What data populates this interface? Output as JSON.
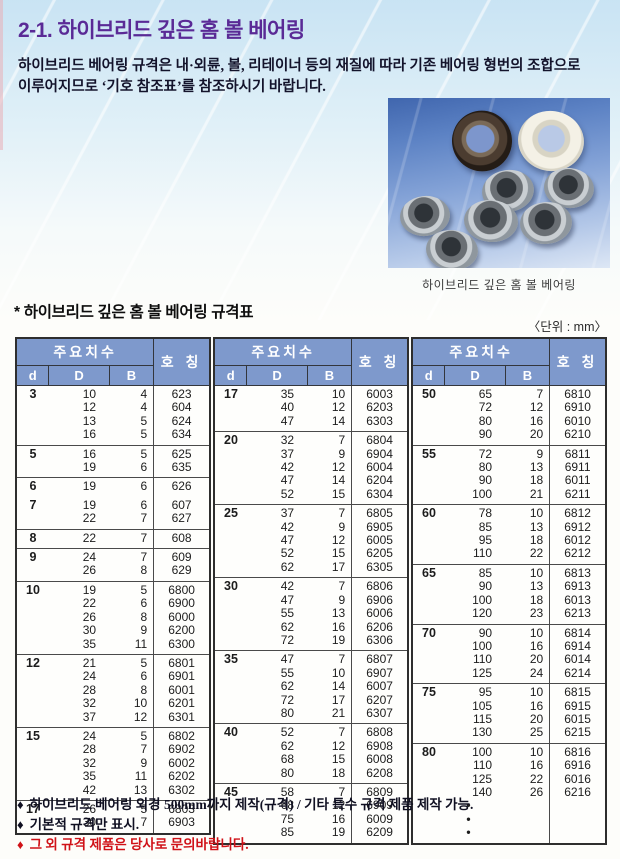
{
  "page": {
    "title": "2-1. 하이브리드 깊은 홈 볼 베어링",
    "intro_line1": "하이브리드 베어링 규격은 내·외륜, 볼, 리테이너 등의 재질에 따라 기존 베어링 형번의 조합으로",
    "intro_line2": "이루어지므로 ‘기호 참조표’를 참조하시기 바랍니다."
  },
  "photo": {
    "caption": "하이브리드 깊은 홈 볼 베어링"
  },
  "spec_table": {
    "title": "* 하이브리드 깊은 홈 볼 베어링 규격표",
    "unit_note": "〈단위 : mm〉",
    "header": {
      "group": "주요치수",
      "d": "d",
      "D": "D",
      "B": "B",
      "name": "호 칭"
    },
    "groups": [
      {
        "blocks": [
          {
            "d": "3",
            "rows": [
              {
                "D": "10",
                "B": "4",
                "no": "623"
              },
              {
                "D": "12",
                "B": "4",
                "no": "604"
              },
              {
                "D": "13",
                "B": "5",
                "no": "624"
              },
              {
                "D": "16",
                "B": "5",
                "no": "634"
              }
            ]
          },
          {
            "d": "5",
            "rows": [
              {
                "D": "16",
                "B": "5",
                "no": "625"
              },
              {
                "D": "19",
                "B": "6",
                "no": "635"
              }
            ]
          },
          {
            "d": "6",
            "rows": [
              {
                "D": "19",
                "B": "6",
                "no": "626"
              }
            ]
          },
          {
            "d": "7",
            "noTop": true,
            "rows": [
              {
                "D": "19",
                "B": "6",
                "no": "607"
              },
              {
                "D": "22",
                "B": "7",
                "no": "627"
              }
            ]
          },
          {
            "d": "8",
            "rows": [
              {
                "D": "22",
                "B": "7",
                "no": "608"
              }
            ]
          },
          {
            "d": "9",
            "rows": [
              {
                "D": "24",
                "B": "7",
                "no": "609"
              },
              {
                "D": "26",
                "B": "8",
                "no": "629"
              }
            ]
          },
          {
            "d": "10",
            "rows": [
              {
                "D": "19",
                "B": "5",
                "no": "6800"
              },
              {
                "D": "22",
                "B": "6",
                "no": "6900"
              },
              {
                "D": "26",
                "B": "8",
                "no": "6000"
              },
              {
                "D": "30",
                "B": "9",
                "no": "6200"
              },
              {
                "D": "35",
                "B": "11",
                "no": "6300"
              }
            ]
          },
          {
            "d": "12",
            "rows": [
              {
                "D": "21",
                "B": "5",
                "no": "6801"
              },
              {
                "D": "24",
                "B": "6",
                "no": "6901"
              },
              {
                "D": "28",
                "B": "8",
                "no": "6001"
              },
              {
                "D": "32",
                "B": "10",
                "no": "6201"
              },
              {
                "D": "37",
                "B": "12",
                "no": "6301"
              }
            ]
          },
          {
            "d": "15",
            "rows": [
              {
                "D": "24",
                "B": "5",
                "no": "6802"
              },
              {
                "D": "28",
                "B": "7",
                "no": "6902"
              },
              {
                "D": "32",
                "B": "9",
                "no": "6002"
              },
              {
                "D": "35",
                "B": "11",
                "no": "6202"
              },
              {
                "D": "42",
                "B": "13",
                "no": "6302"
              }
            ]
          },
          {
            "d": "17",
            "rows": [
              {
                "D": "26",
                "B": "5",
                "no": "6803"
              },
              {
                "D": "30",
                "B": "7",
                "no": "6903"
              }
            ]
          }
        ]
      },
      {
        "blocks": [
          {
            "d": "17",
            "rows": [
              {
                "D": "35",
                "B": "10",
                "no": "6003"
              },
              {
                "D": "40",
                "B": "12",
                "no": "6203"
              },
              {
                "D": "47",
                "B": "14",
                "no": "6303"
              }
            ]
          },
          {
            "d": "20",
            "rows": [
              {
                "D": "32",
                "B": "7",
                "no": "6804"
              },
              {
                "D": "37",
                "B": "9",
                "no": "6904"
              },
              {
                "D": "42",
                "B": "12",
                "no": "6004"
              },
              {
                "D": "47",
                "B": "14",
                "no": "6204"
              },
              {
                "D": "52",
                "B": "15",
                "no": "6304"
              }
            ]
          },
          {
            "d": "25",
            "rows": [
              {
                "D": "37",
                "B": "7",
                "no": "6805"
              },
              {
                "D": "42",
                "B": "9",
                "no": "6905"
              },
              {
                "D": "47",
                "B": "12",
                "no": "6005"
              },
              {
                "D": "52",
                "B": "15",
                "no": "6205"
              },
              {
                "D": "62",
                "B": "17",
                "no": "6305"
              }
            ]
          },
          {
            "d": "30",
            "rows": [
              {
                "D": "42",
                "B": "7",
                "no": "6806"
              },
              {
                "D": "47",
                "B": "9",
                "no": "6906"
              },
              {
                "D": "55",
                "B": "13",
                "no": "6006"
              },
              {
                "D": "62",
                "B": "16",
                "no": "6206"
              },
              {
                "D": "72",
                "B": "19",
                "no": "6306"
              }
            ]
          },
          {
            "d": "35",
            "rows": [
              {
                "D": "47",
                "B": "7",
                "no": "6807"
              },
              {
                "D": "55",
                "B": "10",
                "no": "6907"
              },
              {
                "D": "62",
                "B": "14",
                "no": "6007"
              },
              {
                "D": "72",
                "B": "17",
                "no": "6207"
              },
              {
                "D": "80",
                "B": "21",
                "no": "6307"
              }
            ]
          },
          {
            "d": "40",
            "rows": [
              {
                "D": "52",
                "B": "7",
                "no": "6808"
              },
              {
                "D": "62",
                "B": "12",
                "no": "6908"
              },
              {
                "D": "68",
                "B": "15",
                "no": "6008"
              },
              {
                "D": "80",
                "B": "18",
                "no": "6208"
              }
            ]
          },
          {
            "d": "45",
            "rows": [
              {
                "D": "58",
                "B": "7",
                "no": "6809"
              },
              {
                "D": "68",
                "B": "12",
                "no": "6909"
              },
              {
                "D": "75",
                "B": "16",
                "no": "6009"
              },
              {
                "D": "85",
                "B": "19",
                "no": "6209"
              }
            ]
          }
        ]
      },
      {
        "blocks": [
          {
            "d": "50",
            "rows": [
              {
                "D": "65",
                "B": "7",
                "no": "6810"
              },
              {
                "D": "72",
                "B": "12",
                "no": "6910"
              },
              {
                "D": "80",
                "B": "16",
                "no": "6010"
              },
              {
                "D": "90",
                "B": "20",
                "no": "6210"
              }
            ]
          },
          {
            "d": "55",
            "rows": [
              {
                "D": "72",
                "B": "9",
                "no": "6811"
              },
              {
                "D": "80",
                "B": "13",
                "no": "6911"
              },
              {
                "D": "90",
                "B": "18",
                "no": "6011"
              },
              {
                "D": "100",
                "B": "21",
                "no": "6211"
              }
            ]
          },
          {
            "d": "60",
            "rows": [
              {
                "D": "78",
                "B": "10",
                "no": "6812"
              },
              {
                "D": "85",
                "B": "13",
                "no": "6912"
              },
              {
                "D": "95",
                "B": "18",
                "no": "6012"
              },
              {
                "D": "110",
                "B": "22",
                "no": "6212"
              }
            ]
          },
          {
            "d": "65",
            "rows": [
              {
                "D": "85",
                "B": "10",
                "no": "6813"
              },
              {
                "D": "90",
                "B": "13",
                "no": "6913"
              },
              {
                "D": "100",
                "B": "18",
                "no": "6013"
              },
              {
                "D": "120",
                "B": "23",
                "no": "6213"
              }
            ]
          },
          {
            "d": "70",
            "rows": [
              {
                "D": "90",
                "B": "10",
                "no": "6814"
              },
              {
                "D": "100",
                "B": "16",
                "no": "6914"
              },
              {
                "D": "110",
                "B": "20",
                "no": "6014"
              },
              {
                "D": "125",
                "B": "24",
                "no": "6214"
              }
            ]
          },
          {
            "d": "75",
            "rows": [
              {
                "D": "95",
                "B": "10",
                "no": "6815"
              },
              {
                "D": "105",
                "B": "16",
                "no": "6915"
              },
              {
                "D": "115",
                "B": "20",
                "no": "6015"
              },
              {
                "D": "130",
                "B": "25",
                "no": "6215"
              }
            ]
          },
          {
            "d": "80",
            "rows": [
              {
                "D": "100",
                "B": "10",
                "no": "6816"
              },
              {
                "D": "110",
                "B": "16",
                "no": "6916"
              },
              {
                "D": "125",
                "B": "22",
                "no": "6016"
              },
              {
                "D": "140",
                "B": "26",
                "no": "6216"
              },
              {
                "D": "•",
                "B": "",
                "no": "",
                "dot": true
              },
              {
                "D": "•",
                "B": "",
                "no": "",
                "dot": true
              },
              {
                "D": "•",
                "B": "",
                "no": "",
                "dot": true
              }
            ]
          }
        ]
      }
    ]
  },
  "footnotes": {
    "diamond": "♦",
    "items": [
      {
        "text": "하이브리드 베어링 외경 500mm까지 제작(규격) / 기타 특수 규격 제품 제작 가능.",
        "red": false
      },
      {
        "text": "기본적 규격만 표시.",
        "red": false
      },
      {
        "text": "그 외 규격 제품은 당사로 문의바랍니다.",
        "red": true
      }
    ]
  },
  "colors": {
    "title_purple": "#5a2a96",
    "table_header_blue": "#7e99cc",
    "note_red": "#d01218",
    "photo_blue_top": "#4066ae"
  }
}
